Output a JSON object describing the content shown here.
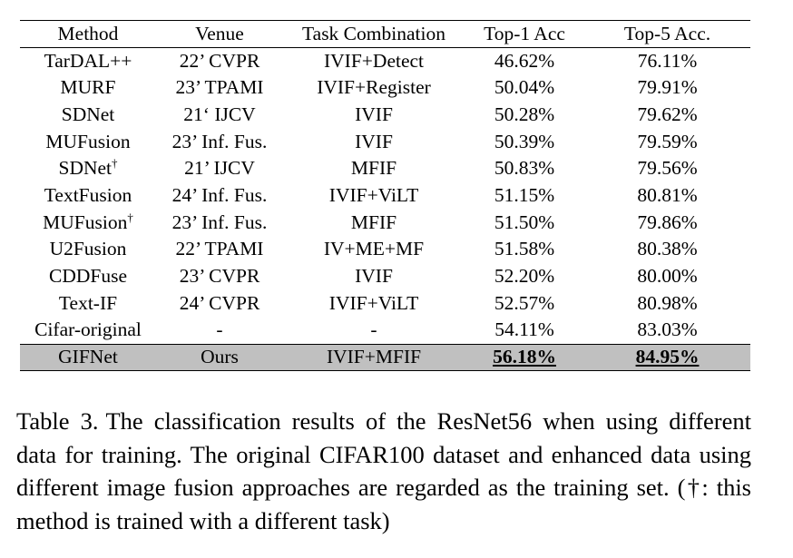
{
  "table": {
    "headers": [
      "Method",
      "Venue",
      "Task Combination",
      "Top-1 Acc",
      "Top-5 Acc."
    ],
    "rows": [
      {
        "method": "TarDAL++",
        "mark": "",
        "venue": "22’ CVPR",
        "task": "IVIF+Detect",
        "top1": "46.62%",
        "top5": "76.11%"
      },
      {
        "method": "MURF",
        "mark": "",
        "venue": "23’ TPAMI",
        "task": "IVIF+Register",
        "top1": "50.04%",
        "top5": "79.91%"
      },
      {
        "method": "SDNet",
        "mark": "",
        "venue": "21‘ IJCV",
        "task": "IVIF",
        "top1": "50.28%",
        "top5": "79.62%"
      },
      {
        "method": "MUFusion",
        "mark": "",
        "venue": "23’ Inf. Fus.",
        "task": "IVIF",
        "top1": "50.39%",
        "top5": "79.59%"
      },
      {
        "method": "SDNet",
        "mark": "†",
        "venue": "21’ IJCV",
        "task": "MFIF",
        "top1": "50.83%",
        "top5": "79.56%"
      },
      {
        "method": "TextFusion",
        "mark": "",
        "venue": "24’ Inf. Fus.",
        "task": "IVIF+ViLT",
        "top1": "51.15%",
        "top5": "80.81%"
      },
      {
        "method": "MUFusion",
        "mark": "†",
        "venue": "23’ Inf. Fus.",
        "task": "MFIF",
        "top1": "51.50%",
        "top5": "79.86%"
      },
      {
        "method": "U2Fusion",
        "mark": "",
        "venue": "22’ TPAMI",
        "task": "IV+ME+MF",
        "top1": "51.58%",
        "top5": "80.38%"
      },
      {
        "method": "CDDFuse",
        "mark": "",
        "venue": "23’ CVPR",
        "task": "IVIF",
        "top1": "52.20%",
        "top5": "80.00%"
      },
      {
        "method": "Text-IF",
        "mark": "",
        "venue": "24’ CVPR",
        "task": "IVIF+ViLT",
        "top1": "52.57%",
        "top5": "80.98%"
      },
      {
        "method": "Cifar-original",
        "mark": "",
        "venue": "-",
        "task": "-",
        "top1": "54.11%",
        "top5": "83.03%"
      },
      {
        "method": "GIFNet",
        "mark": "",
        "venue": "Ours",
        "task": "IVIF+MFIF",
        "top1": "56.18%",
        "top5": "84.95%",
        "highlight": true
      }
    ]
  },
  "caption": {
    "label": "Table 3.",
    "text": "The classification results of the ResNet56 when using different data for training. The original CIFAR100 dataset and enhanced data using different image fusion approaches are regarded as the training set. (†: this method is trained with a different task)"
  }
}
